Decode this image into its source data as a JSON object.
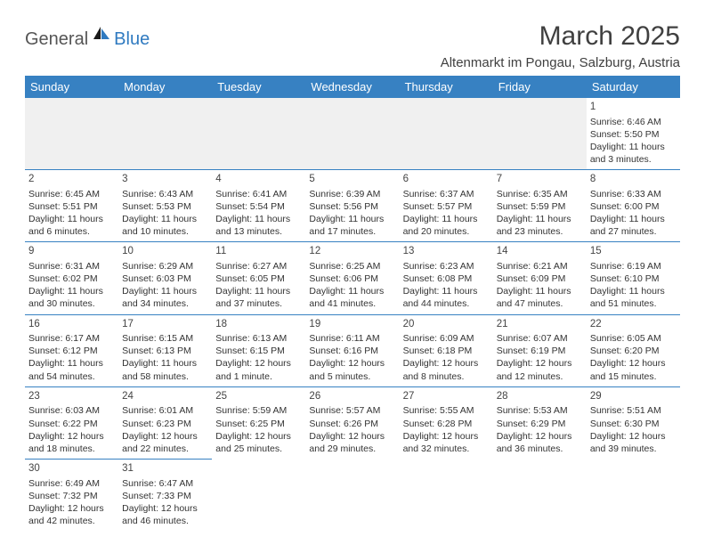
{
  "logo": {
    "text1": "General",
    "text2": "Blue"
  },
  "title": "March 2025",
  "location": "Altenmarkt im Pongau, Salzburg, Austria",
  "colors": {
    "header_bg": "#3781c2",
    "header_text": "#ffffff",
    "divider": "#3781c2",
    "empty_bg": "#f0f0f0",
    "body_text": "#333333",
    "title_text": "#404040",
    "logo_gray": "#555555",
    "logo_blue": "#2f7ac0"
  },
  "typography": {
    "title_fontsize": 30,
    "location_fontsize": 15,
    "dayhead_fontsize": 13,
    "cell_fontsize": 10.5,
    "daynum_fontsize": 11.5
  },
  "day_headers": [
    "Sunday",
    "Monday",
    "Tuesday",
    "Wednesday",
    "Thursday",
    "Friday",
    "Saturday"
  ],
  "weeks": [
    [
      null,
      null,
      null,
      null,
      null,
      null,
      {
        "n": "1",
        "sunrise": "Sunrise: 6:46 AM",
        "sunset": "Sunset: 5:50 PM",
        "daylight": "Daylight: 11 hours and 3 minutes."
      }
    ],
    [
      {
        "n": "2",
        "sunrise": "Sunrise: 6:45 AM",
        "sunset": "Sunset: 5:51 PM",
        "daylight": "Daylight: 11 hours and 6 minutes."
      },
      {
        "n": "3",
        "sunrise": "Sunrise: 6:43 AM",
        "sunset": "Sunset: 5:53 PM",
        "daylight": "Daylight: 11 hours and 10 minutes."
      },
      {
        "n": "4",
        "sunrise": "Sunrise: 6:41 AM",
        "sunset": "Sunset: 5:54 PM",
        "daylight": "Daylight: 11 hours and 13 minutes."
      },
      {
        "n": "5",
        "sunrise": "Sunrise: 6:39 AM",
        "sunset": "Sunset: 5:56 PM",
        "daylight": "Daylight: 11 hours and 17 minutes."
      },
      {
        "n": "6",
        "sunrise": "Sunrise: 6:37 AM",
        "sunset": "Sunset: 5:57 PM",
        "daylight": "Daylight: 11 hours and 20 minutes."
      },
      {
        "n": "7",
        "sunrise": "Sunrise: 6:35 AM",
        "sunset": "Sunset: 5:59 PM",
        "daylight": "Daylight: 11 hours and 23 minutes."
      },
      {
        "n": "8",
        "sunrise": "Sunrise: 6:33 AM",
        "sunset": "Sunset: 6:00 PM",
        "daylight": "Daylight: 11 hours and 27 minutes."
      }
    ],
    [
      {
        "n": "9",
        "sunrise": "Sunrise: 6:31 AM",
        "sunset": "Sunset: 6:02 PM",
        "daylight": "Daylight: 11 hours and 30 minutes."
      },
      {
        "n": "10",
        "sunrise": "Sunrise: 6:29 AM",
        "sunset": "Sunset: 6:03 PM",
        "daylight": "Daylight: 11 hours and 34 minutes."
      },
      {
        "n": "11",
        "sunrise": "Sunrise: 6:27 AM",
        "sunset": "Sunset: 6:05 PM",
        "daylight": "Daylight: 11 hours and 37 minutes."
      },
      {
        "n": "12",
        "sunrise": "Sunrise: 6:25 AM",
        "sunset": "Sunset: 6:06 PM",
        "daylight": "Daylight: 11 hours and 41 minutes."
      },
      {
        "n": "13",
        "sunrise": "Sunrise: 6:23 AM",
        "sunset": "Sunset: 6:08 PM",
        "daylight": "Daylight: 11 hours and 44 minutes."
      },
      {
        "n": "14",
        "sunrise": "Sunrise: 6:21 AM",
        "sunset": "Sunset: 6:09 PM",
        "daylight": "Daylight: 11 hours and 47 minutes."
      },
      {
        "n": "15",
        "sunrise": "Sunrise: 6:19 AM",
        "sunset": "Sunset: 6:10 PM",
        "daylight": "Daylight: 11 hours and 51 minutes."
      }
    ],
    [
      {
        "n": "16",
        "sunrise": "Sunrise: 6:17 AM",
        "sunset": "Sunset: 6:12 PM",
        "daylight": "Daylight: 11 hours and 54 minutes."
      },
      {
        "n": "17",
        "sunrise": "Sunrise: 6:15 AM",
        "sunset": "Sunset: 6:13 PM",
        "daylight": "Daylight: 11 hours and 58 minutes."
      },
      {
        "n": "18",
        "sunrise": "Sunrise: 6:13 AM",
        "sunset": "Sunset: 6:15 PM",
        "daylight": "Daylight: 12 hours and 1 minute."
      },
      {
        "n": "19",
        "sunrise": "Sunrise: 6:11 AM",
        "sunset": "Sunset: 6:16 PM",
        "daylight": "Daylight: 12 hours and 5 minutes."
      },
      {
        "n": "20",
        "sunrise": "Sunrise: 6:09 AM",
        "sunset": "Sunset: 6:18 PM",
        "daylight": "Daylight: 12 hours and 8 minutes."
      },
      {
        "n": "21",
        "sunrise": "Sunrise: 6:07 AM",
        "sunset": "Sunset: 6:19 PM",
        "daylight": "Daylight: 12 hours and 12 minutes."
      },
      {
        "n": "22",
        "sunrise": "Sunrise: 6:05 AM",
        "sunset": "Sunset: 6:20 PM",
        "daylight": "Daylight: 12 hours and 15 minutes."
      }
    ],
    [
      {
        "n": "23",
        "sunrise": "Sunrise: 6:03 AM",
        "sunset": "Sunset: 6:22 PM",
        "daylight": "Daylight: 12 hours and 18 minutes."
      },
      {
        "n": "24",
        "sunrise": "Sunrise: 6:01 AM",
        "sunset": "Sunset: 6:23 PM",
        "daylight": "Daylight: 12 hours and 22 minutes."
      },
      {
        "n": "25",
        "sunrise": "Sunrise: 5:59 AM",
        "sunset": "Sunset: 6:25 PM",
        "daylight": "Daylight: 12 hours and 25 minutes."
      },
      {
        "n": "26",
        "sunrise": "Sunrise: 5:57 AM",
        "sunset": "Sunset: 6:26 PM",
        "daylight": "Daylight: 12 hours and 29 minutes."
      },
      {
        "n": "27",
        "sunrise": "Sunrise: 5:55 AM",
        "sunset": "Sunset: 6:28 PM",
        "daylight": "Daylight: 12 hours and 32 minutes."
      },
      {
        "n": "28",
        "sunrise": "Sunrise: 5:53 AM",
        "sunset": "Sunset: 6:29 PM",
        "daylight": "Daylight: 12 hours and 36 minutes."
      },
      {
        "n": "29",
        "sunrise": "Sunrise: 5:51 AM",
        "sunset": "Sunset: 6:30 PM",
        "daylight": "Daylight: 12 hours and 39 minutes."
      }
    ],
    [
      {
        "n": "30",
        "sunrise": "Sunrise: 6:49 AM",
        "sunset": "Sunset: 7:32 PM",
        "daylight": "Daylight: 12 hours and 42 minutes."
      },
      {
        "n": "31",
        "sunrise": "Sunrise: 6:47 AM",
        "sunset": "Sunset: 7:33 PM",
        "daylight": "Daylight: 12 hours and 46 minutes."
      },
      null,
      null,
      null,
      null,
      null
    ]
  ]
}
